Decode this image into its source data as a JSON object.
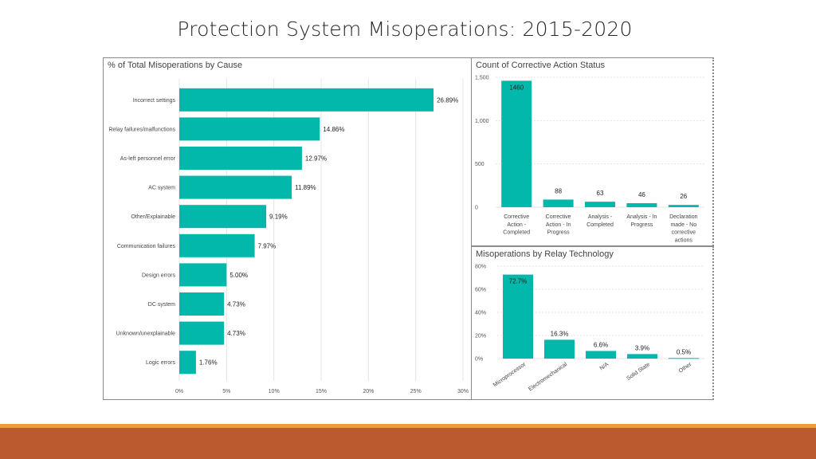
{
  "page": {
    "title": "Protection System Misoperations:  2015-2020"
  },
  "colors": {
    "bar": "#01b8aa",
    "grid": "#e4e4e4",
    "footer_orange": "#e9a23b",
    "footer_brown": "#bb5a2e"
  },
  "chart_data": [
    {
      "id": "cause",
      "type": "bar",
      "orientation": "horizontal",
      "title": "% of Total Misoperations by Cause",
      "categories": [
        "Incorrect settings",
        "Relay failures/malfunctions",
        "As-left personnel error",
        "AC system",
        "Other/Explainable",
        "Communication failures",
        "Design errors",
        "DC system",
        "Unknown/unexplainable",
        "Logic errors"
      ],
      "values": [
        26.89,
        14.86,
        12.97,
        11.89,
        9.19,
        7.97,
        5.0,
        4.73,
        4.73,
        1.76
      ],
      "data_labels": [
        "26.89%",
        "14.86%",
        "12.97%",
        "11.89%",
        "9.19%",
        "7.97%",
        "5.00%",
        "4.73%",
        "4.73%",
        "1.76%"
      ],
      "xlim": [
        0,
        30
      ],
      "xticks": [
        0,
        5,
        10,
        15,
        20,
        25,
        30
      ],
      "xtick_labels": [
        "0%",
        "5%",
        "10%",
        "15%",
        "20%",
        "25%",
        "30%"
      ],
      "grid": true
    },
    {
      "id": "status",
      "type": "bar",
      "title": "Count of Corrective Action Status",
      "categories": [
        "Corrective Action - Completed",
        "Corrective Action - In Progress",
        "Analysis - Completed",
        "Analysis - In Progress",
        "Declaration made - No corrective actions"
      ],
      "category_lines": [
        [
          "Corrective",
          "Action -",
          "Completed"
        ],
        [
          "Corrective",
          "Action - In",
          "Progress"
        ],
        [
          "Analysis -",
          "Completed"
        ],
        [
          "Analysis - In",
          "Progress"
        ],
        [
          "Declaration",
          "made - No",
          "corrective",
          "actions"
        ]
      ],
      "values": [
        1460,
        88,
        63,
        46,
        26
      ],
      "data_labels": [
        "1460",
        "88",
        "63",
        "46",
        "26"
      ],
      "ylim": [
        0,
        1500
      ],
      "yticks": [
        0,
        500,
        1000,
        1500
      ],
      "ytick_labels": [
        "0",
        "500",
        "1,000",
        "1,500"
      ],
      "grid": true
    },
    {
      "id": "relay",
      "type": "bar",
      "title": "Misoperations by Relay Technology",
      "categories": [
        "Microprocessor",
        "Electromechanical",
        "N/A",
        "Solid State",
        "Other"
      ],
      "values": [
        72.7,
        16.3,
        6.6,
        3.9,
        0.5
      ],
      "data_labels": [
        "72.7%",
        "16.3%",
        "6.6%",
        "3.9%",
        "0.5%"
      ],
      "ylim": [
        0,
        80
      ],
      "yticks": [
        0,
        20,
        40,
        60,
        80
      ],
      "ytick_labels": [
        "0%",
        "20%",
        "40%",
        "60%",
        "80%"
      ],
      "grid": true
    }
  ]
}
